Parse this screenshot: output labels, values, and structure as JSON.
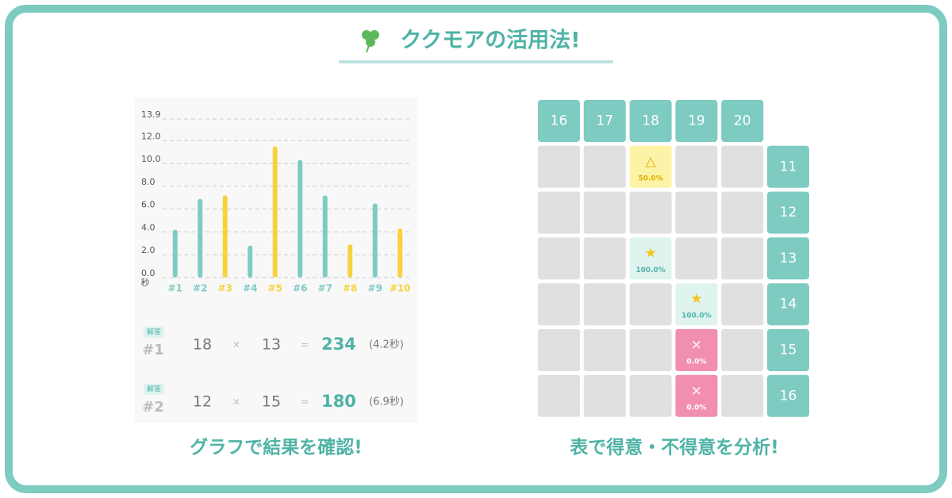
{
  "header": {
    "title": "ククモアの活用法!"
  },
  "chart_data": {
    "type": "bar",
    "ylabel": "秒",
    "categories": [
      "#1",
      "#2",
      "#3",
      "#4",
      "#5",
      "#6",
      "#7",
      "#8",
      "#9",
      "#10"
    ],
    "values": [
      4.2,
      6.9,
      7.2,
      2.8,
      11.5,
      10.3,
      7.2,
      2.9,
      6.5,
      4.3
    ],
    "colors": [
      "#7ecbc2",
      "#7ecbc2",
      "#f7d23e",
      "#7ecbc2",
      "#f7d23e",
      "#7ecbc2",
      "#7ecbc2",
      "#f7d23e",
      "#7ecbc2",
      "#f7d23e"
    ],
    "ylim": [
      0,
      13.9
    ],
    "yticks": [
      {
        "value": 0,
        "label": "0.0"
      },
      {
        "value": 2,
        "label": "2.0"
      },
      {
        "value": 4,
        "label": "4.0"
      },
      {
        "value": 6,
        "label": "6.0"
      },
      {
        "value": 8,
        "label": "8.0"
      },
      {
        "value": 10,
        "label": "10.0"
      },
      {
        "value": 12,
        "label": "12.0"
      },
      13.9
    ],
    "grid": true
  },
  "answers": [
    {
      "badge": "解答",
      "id": "#1",
      "a": "18",
      "op": "×",
      "b": "13",
      "eq": "=",
      "result": "234",
      "time": "(4.2秒)"
    },
    {
      "badge": "解答",
      "id": "#2",
      "a": "12",
      "op": "×",
      "b": "15",
      "eq": "=",
      "result": "180",
      "time": "(6.9秒)"
    }
  ],
  "left_caption": "グラフで結果を確認!",
  "grid": {
    "columns": [
      "16",
      "17",
      "18",
      "19",
      "20"
    ],
    "rows": [
      {
        "label": "11",
        "cells": [
          null,
          null,
          {
            "symbol": "△",
            "value": "50.0%",
            "color": "#fdf3a6",
            "text_color": "#e0b000"
          },
          null,
          null
        ]
      },
      {
        "label": "12",
        "cells": [
          null,
          null,
          null,
          null,
          null
        ]
      },
      {
        "label": "13",
        "cells": [
          null,
          null,
          {
            "symbol": "★",
            "value": "100.0%",
            "color": "#dff3ef",
            "text_color": "#4fb3a6"
          },
          null,
          null
        ]
      },
      {
        "label": "14",
        "cells": [
          null,
          null,
          null,
          {
            "symbol": "★",
            "value": "100.0%",
            "color": "#dff3ef",
            "text_color": "#4fb3a6"
          },
          null
        ]
      },
      {
        "label": "15",
        "cells": [
          null,
          null,
          null,
          {
            "symbol": "×",
            "value": "0.0%",
            "color": "#f28fb0",
            "text_color": "#ffffff"
          },
          null
        ]
      },
      {
        "label": "16",
        "cells": [
          null,
          null,
          null,
          {
            "symbol": "×",
            "value": "0.0%",
            "color": "#f28fb0",
            "text_color": "#ffffff"
          },
          null
        ]
      }
    ]
  },
  "right_caption": "表で得意・不得意を分析!"
}
